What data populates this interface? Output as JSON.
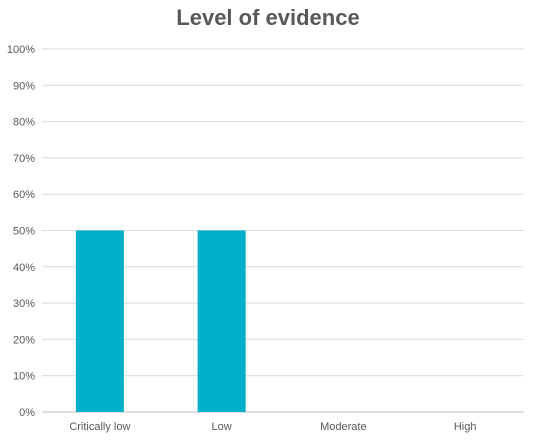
{
  "chart_data": {
    "type": "bar",
    "title": "Level of evidence",
    "xlabel": "",
    "ylabel": "",
    "categories": [
      "Critically low",
      "Low",
      "Moderate",
      "High"
    ],
    "values": [
      50,
      50,
      0,
      0
    ],
    "ylim": [
      0,
      100
    ],
    "y_ticks": [
      "0%",
      "10%",
      "20%",
      "30%",
      "40%",
      "50%",
      "60%",
      "70%",
      "80%",
      "90%",
      "100%"
    ],
    "bar_color": "#00AFCA",
    "grid": true,
    "legend": "none"
  }
}
